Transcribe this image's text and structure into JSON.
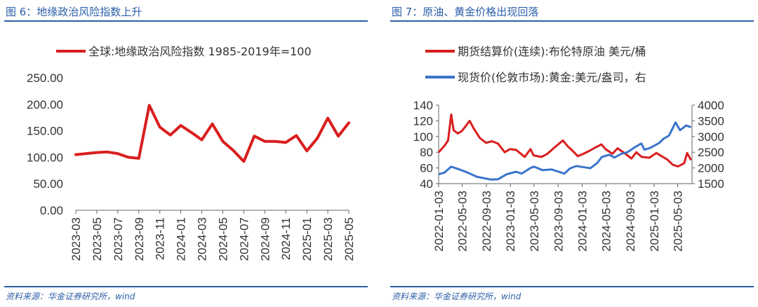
{
  "charts": [
    {
      "title": "图 6：地缘政治风险指数上升",
      "source": "资料来源：华金证券研究所，wind"
    },
    {
      "title": "图 7：原油、黄金价格出现回落",
      "source": "资料来源：华金证券研究所，wind"
    }
  ],
  "chart_data": [
    {
      "type": "line",
      "title": "图 6：地缘政治风险指数上升",
      "ylim": [
        0,
        250
      ],
      "yticks": [
        "0.00",
        "50.00",
        "100.00",
        "150.00",
        "200.00",
        "250.00"
      ],
      "xticks": [
        "2023-03",
        "2023-05",
        "2023-07",
        "2023-09",
        "2023-11",
        "2024-01",
        "2024-03",
        "2024-05",
        "2024-07",
        "2024-09",
        "2024-11",
        "2025-01",
        "2025-03",
        "2025-05"
      ],
      "x": [
        "2023-03",
        "2023-04",
        "2023-05",
        "2023-06",
        "2023-07",
        "2023-08",
        "2023-09",
        "2023-10",
        "2023-11",
        "2023-12",
        "2024-01",
        "2024-02",
        "2024-03",
        "2024-04",
        "2024-05",
        "2024-06",
        "2024-07",
        "2024-08",
        "2024-09",
        "2024-10",
        "2024-11",
        "2024-12",
        "2025-01",
        "2025-02",
        "2025-03",
        "2025-04",
        "2025-05"
      ],
      "series": [
        {
          "name": "全球:地缘政治风险指数 1985-2019年=100",
          "color": "#d91e1e",
          "values": [
            105,
            107,
            109,
            110,
            107,
            100,
            98,
            198,
            157,
            142,
            160,
            147,
            133,
            163,
            130,
            113,
            92,
            140,
            130,
            130,
            128,
            141,
            112,
            136,
            174,
            140,
            165
          ]
        }
      ],
      "legend": "top"
    },
    {
      "type": "line",
      "title": "图 7：原油、黄金价格出现回落",
      "ylim": [
        40,
        140
      ],
      "y2lim": [
        1500,
        4000
      ],
      "yticks": [
        "40",
        "60",
        "80",
        "100",
        "120",
        "140"
      ],
      "y2ticks": [
        "1500",
        "2000",
        "2500",
        "3000",
        "3500",
        "4000"
      ],
      "xticks": [
        "2022-01-03",
        "2022-05-03",
        "2022-09-03",
        "2023-01-03",
        "2023-05-03",
        "2023-09-03",
        "2024-01-03",
        "2024-05-03",
        "2024-09-03",
        "2025-01-03",
        "2025-05-03"
      ],
      "legend": "top",
      "series": [
        {
          "name": "期货结算价(连续):布伦特原油 美元/桶",
          "axis": "left",
          "color": "#d91e1e",
          "x": [
            "2022-01-03",
            "2022-02-01",
            "2022-02-20",
            "2022-03-08",
            "2022-03-20",
            "2022-04-10",
            "2022-05-01",
            "2022-06-10",
            "2022-07-01",
            "2022-08-01",
            "2022-09-01",
            "2022-10-01",
            "2022-11-01",
            "2022-12-05",
            "2023-01-01",
            "2023-02-01",
            "2023-03-17",
            "2023-04-15",
            "2023-05-01",
            "2023-06-10",
            "2023-07-10",
            "2023-08-15",
            "2023-09-27",
            "2023-10-20",
            "2023-11-15",
            "2023-12-12",
            "2024-01-10",
            "2024-02-10",
            "2024-03-10",
            "2024-04-10",
            "2024-05-01",
            "2024-06-05",
            "2024-07-01",
            "2024-08-10",
            "2024-09-10",
            "2024-10-05",
            "2024-11-01",
            "2024-12-10",
            "2025-01-15",
            "2025-02-10",
            "2025-03-10",
            "2025-04-08",
            "2025-05-05",
            "2025-06-05",
            "2025-06-20",
            "2025-07-10"
          ],
          "values": [
            80,
            88,
            95,
            128,
            108,
            104,
            107,
            120,
            110,
            98,
            92,
            94,
            91,
            80,
            84,
            83,
            74,
            84,
            76,
            74,
            78,
            86,
            95,
            88,
            82,
            75,
            78,
            82,
            86,
            90,
            84,
            78,
            85,
            78,
            72,
            80,
            74,
            73,
            79,
            75,
            71,
            64,
            62,
            66,
            79,
            70
          ]
        },
        {
          "name": "现货价(伦敦市场):黄金:美元/盎司，右",
          "axis": "right",
          "color": "#3a74c9",
          "x": [
            "2022-01-03",
            "2022-02-01",
            "2022-03-08",
            "2022-04-15",
            "2022-06-01",
            "2022-07-15",
            "2022-09-26",
            "2022-11-01",
            "2022-12-15",
            "2023-02-01",
            "2023-03-01",
            "2023-04-15",
            "2023-05-03",
            "2023-06-15",
            "2023-08-01",
            "2023-10-05",
            "2023-11-01",
            "2023-12-04",
            "2024-01-15",
            "2024-02-14",
            "2024-03-20",
            "2024-04-12",
            "2024-05-20",
            "2024-06-15",
            "2024-07-20",
            "2024-08-20",
            "2024-09-25",
            "2024-10-30",
            "2024-11-15",
            "2024-12-15",
            "2025-01-30",
            "2025-02-20",
            "2025-03-20",
            "2025-04-22",
            "2025-05-15",
            "2025-06-15",
            "2025-07-10"
          ],
          "values": [
            1800,
            1850,
            2040,
            1960,
            1850,
            1720,
            1630,
            1640,
            1800,
            1880,
            1820,
            2000,
            2040,
            1930,
            1950,
            1820,
            1980,
            2060,
            2020,
            1990,
            2160,
            2350,
            2420,
            2330,
            2450,
            2500,
            2650,
            2780,
            2580,
            2640,
            2800,
            2930,
            3030,
            3450,
            3200,
            3350,
            3300
          ]
        }
      ]
    }
  ]
}
